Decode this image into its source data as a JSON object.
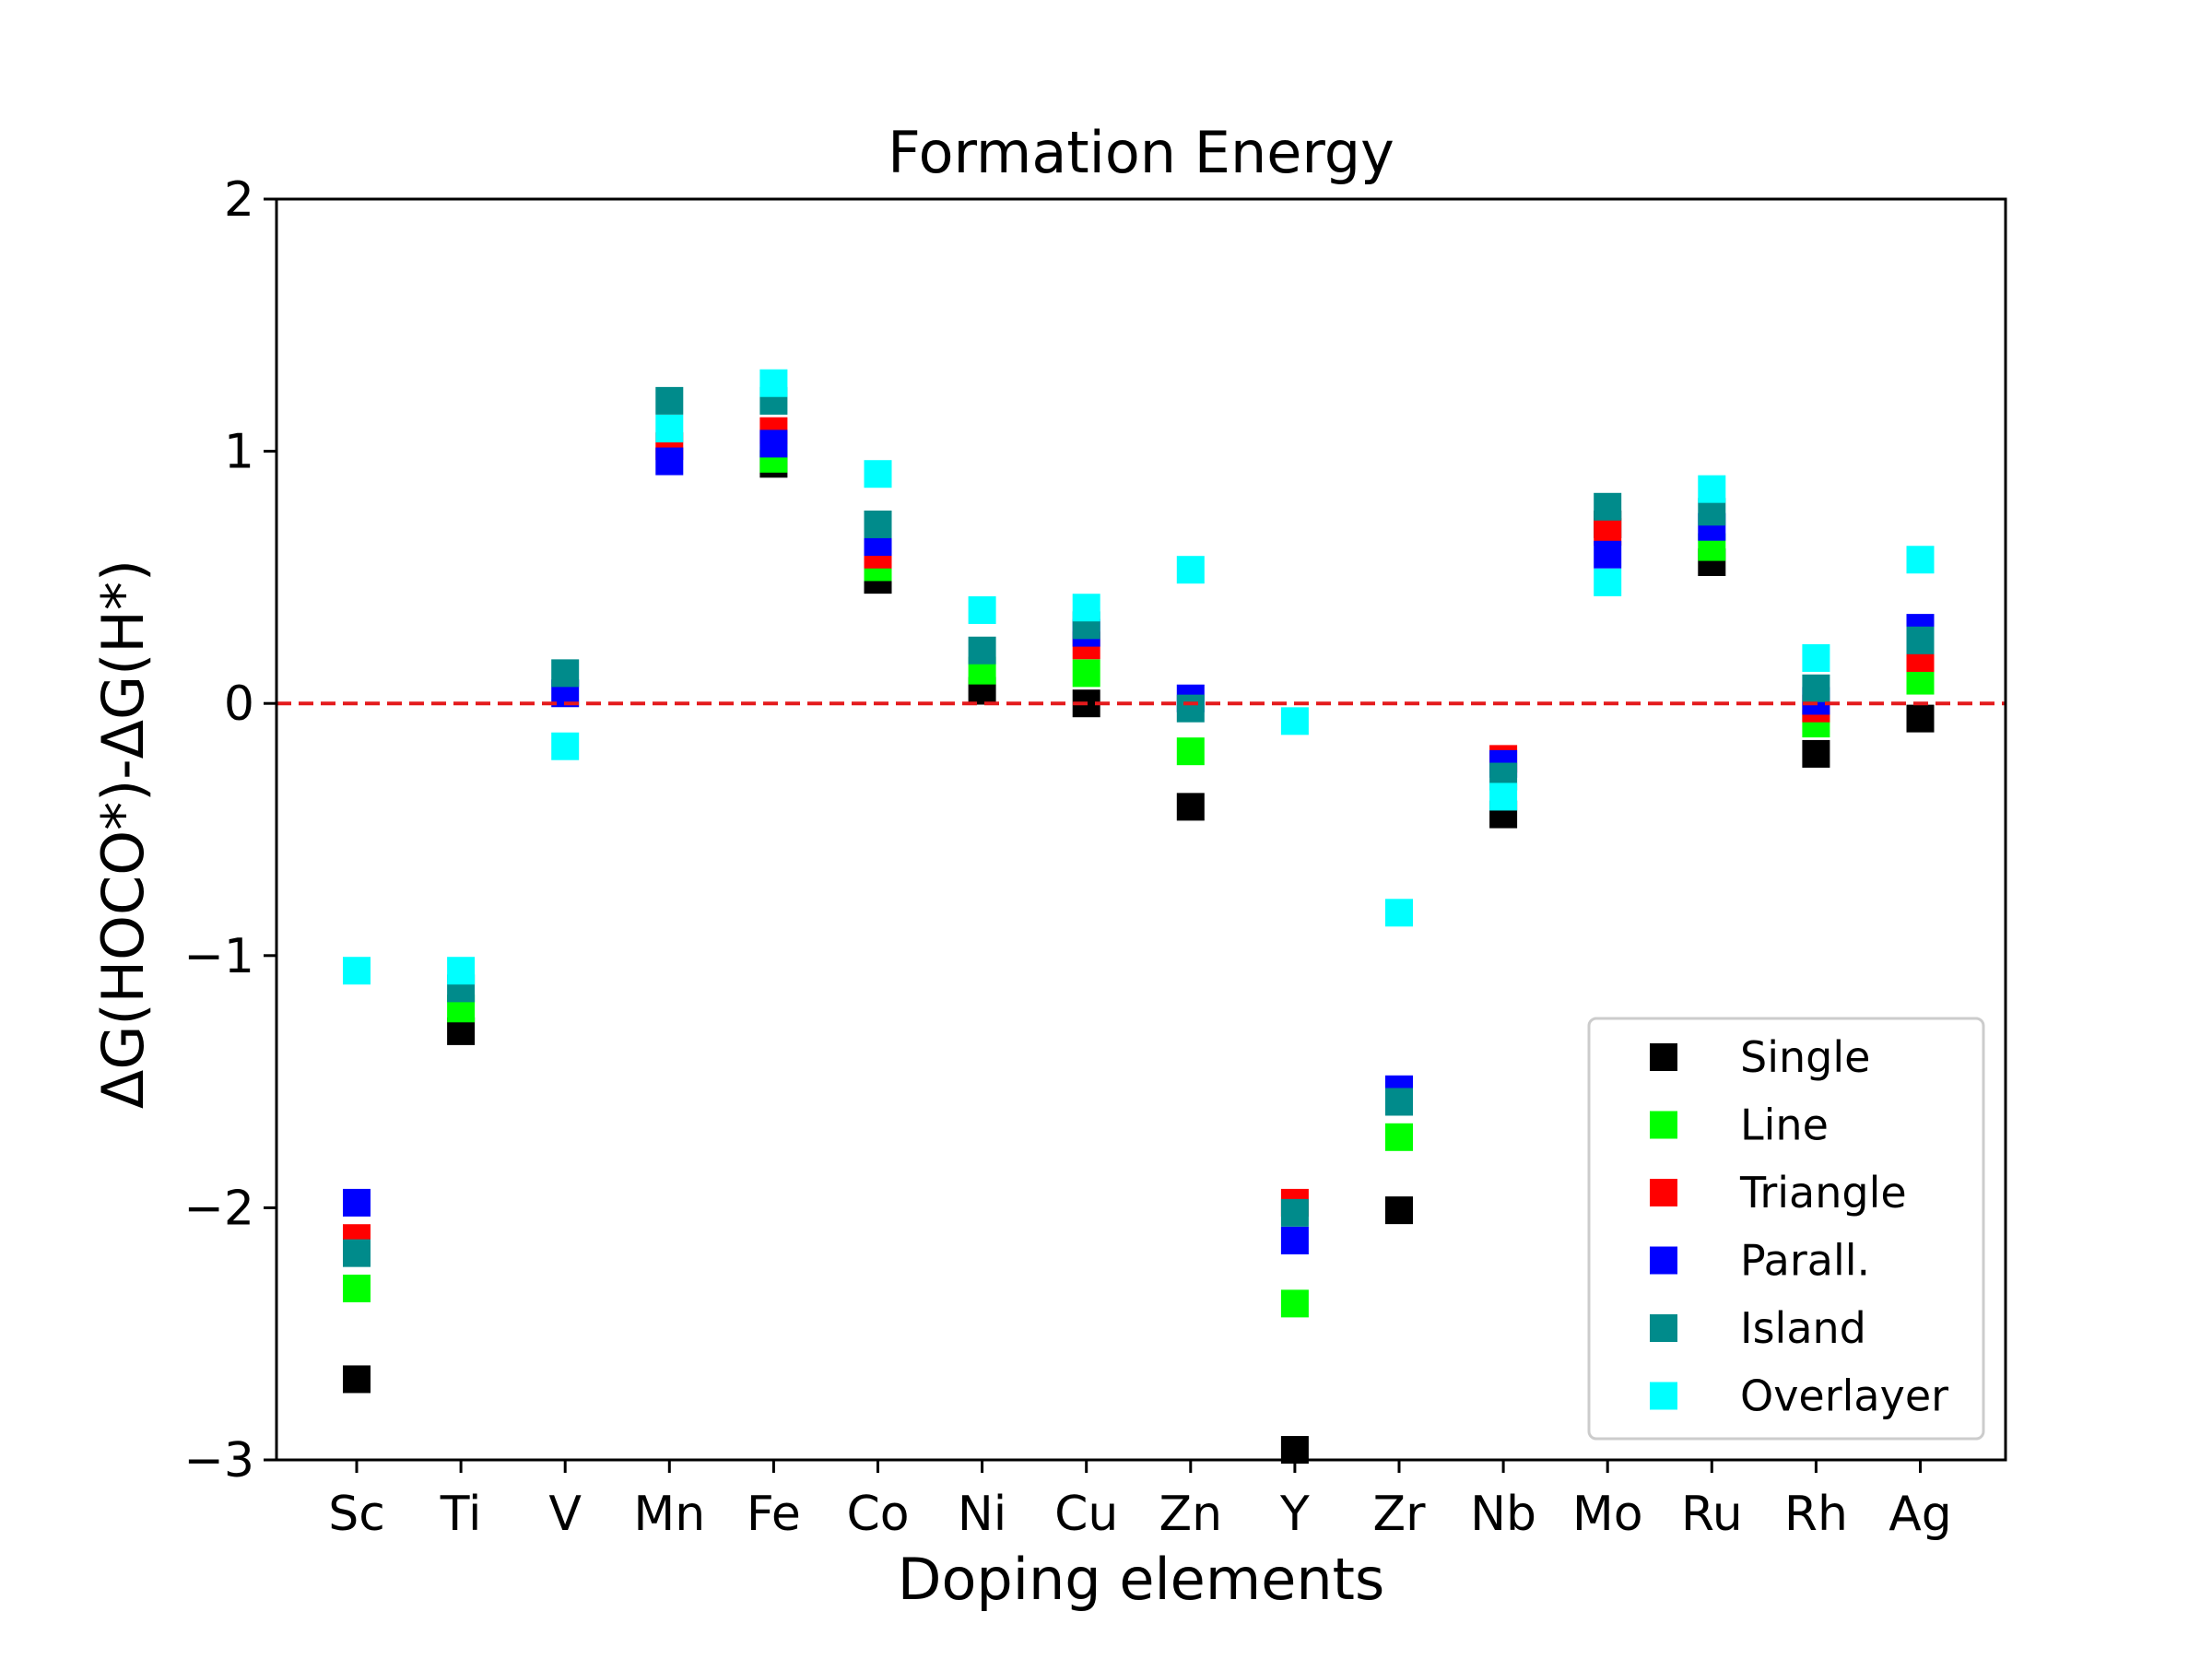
{
  "chart_data": {
    "type": "scatter",
    "title": "Formation Energy",
    "xlabel": "Doping elements",
    "ylabel": "ΔG(HOCO*)-ΔG(H*)",
    "categories": [
      "Sc",
      "Ti",
      "V",
      "Mn",
      "Fe",
      "Co",
      "Ni",
      "Cu",
      "Zn",
      "Y",
      "Zr",
      "Nb",
      "Mo",
      "Ru",
      "Rh",
      "Ag"
    ],
    "ylim": [
      -3,
      2
    ],
    "yticks": [
      2,
      1,
      0,
      -1,
      -2,
      -3
    ],
    "ytick_labels": [
      "2",
      "1",
      "0",
      "−1",
      "−2",
      "−3"
    ],
    "reference_line": {
      "y": 0,
      "color": "#e41a1c",
      "style": "dashed"
    },
    "grid": false,
    "legend_position": "lower-right",
    "series": [
      {
        "name": "Single",
        "color": "#000000",
        "values": [
          -2.68,
          -1.3,
          null,
          null,
          0.95,
          0.49,
          0.05,
          0.0,
          -0.41,
          -2.96,
          -2.01,
          -0.44,
          0.71,
          0.56,
          -0.2,
          -0.06
        ]
      },
      {
        "name": "Line",
        "color": "#00ff00",
        "values": [
          -2.32,
          -1.21,
          null,
          null,
          0.97,
          0.54,
          0.13,
          0.12,
          -0.19,
          -2.38,
          -1.72,
          null,
          null,
          0.62,
          -0.08,
          0.09
        ]
      },
      {
        "name": "Triangle",
        "color": "#ff0000",
        "values": [
          -2.12,
          null,
          null,
          1.02,
          1.08,
          0.59,
          null,
          0.23,
          null,
          -1.98,
          null,
          -0.22,
          0.68,
          null,
          -0.02,
          0.18
        ]
      },
      {
        "name": "Parall.",
        "color": "#0000ff",
        "values": [
          -1.98,
          null,
          0.04,
          0.96,
          1.03,
          0.64,
          null,
          0.28,
          0.02,
          -2.13,
          -1.53,
          -0.24,
          0.59,
          0.7,
          0.01,
          0.3
        ]
      },
      {
        "name": "Island",
        "color": "#008b8b",
        "values": [
          -2.18,
          -1.13,
          0.12,
          1.2,
          1.2,
          0.71,
          0.21,
          0.31,
          -0.02,
          -2.02,
          -1.58,
          -0.29,
          0.78,
          0.76,
          0.06,
          0.25
        ]
      },
      {
        "name": "Overlayer",
        "color": "#00ffff",
        "values": [
          -1.06,
          -1.06,
          -0.17,
          1.09,
          1.27,
          0.91,
          0.37,
          0.38,
          0.53,
          -0.07,
          -0.83,
          -0.37,
          0.48,
          0.85,
          0.18,
          0.57
        ]
      }
    ]
  }
}
